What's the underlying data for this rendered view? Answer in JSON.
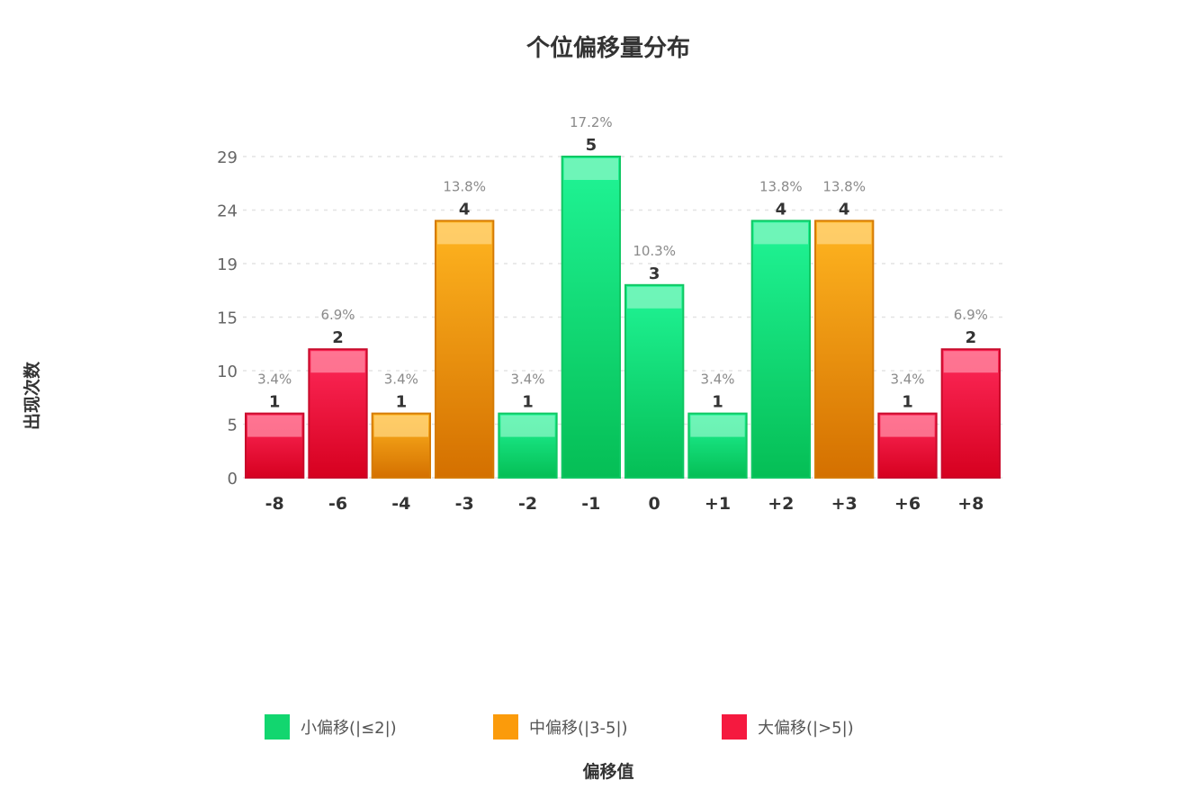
{
  "chart_data": {
    "type": "bar",
    "title": "个位偏移量分布",
    "xlabel": "偏移值",
    "ylabel": "出现次数",
    "categories": [
      "-8",
      "-6",
      "-4",
      "-3",
      "-2",
      "-1",
      "0",
      "+1",
      "+2",
      "+3",
      "+6",
      "+8"
    ],
    "values": [
      1,
      2,
      1,
      4,
      1,
      5,
      3,
      1,
      4,
      4,
      1,
      2
    ],
    "percent_labels": [
      "3.4%",
      "6.9%",
      "3.4%",
      "13.8%",
      "3.4%",
      "17.2%",
      "10.3%",
      "3.4%",
      "13.8%",
      "13.8%",
      "3.4%",
      "6.9%"
    ],
    "bar_groups": [
      "large",
      "large",
      "medium",
      "medium",
      "small",
      "small",
      "small",
      "small",
      "small",
      "medium",
      "large",
      "large"
    ],
    "yticks": [
      "0",
      "5",
      "10",
      "15",
      "19",
      "24",
      "29"
    ],
    "ylim": [
      0,
      5
    ],
    "grid": true,
    "legend_position": "bottom",
    "legend": [
      {
        "key": "small",
        "label": "小偏移(|≤2|)",
        "color": "#12d66f"
      },
      {
        "key": "medium",
        "label": "中偏移(|3-5|)",
        "color": "#fb9b0b"
      },
      {
        "key": "large",
        "label": "大偏移(|>5|)",
        "color": "#f5193f"
      }
    ],
    "group_colors": {
      "small": {
        "top": "#20f596",
        "bottom": "#05be55",
        "border": "#10c763",
        "gloss": "#8af6c4"
      },
      "medium": {
        "top": "#ffb520",
        "bottom": "#d47000",
        "border": "#d57b05",
        "gloss": "#ffd580"
      },
      "large": {
        "top": "#ff2a5a",
        "bottom": "#d6001f",
        "border": "#c90a2b",
        "gloss": "#ff8da5"
      }
    }
  }
}
